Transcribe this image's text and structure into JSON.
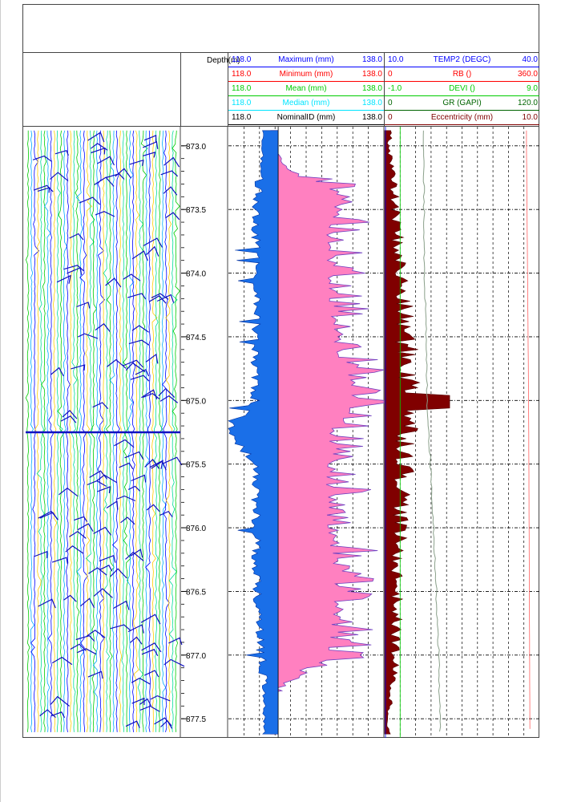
{
  "depth_label": "Depth(m)",
  "colors": {
    "blue": "#0000ff",
    "red": "#ff0000",
    "green": "#00cc00",
    "cyan": "#00e5ff",
    "black": "#000000",
    "darkred": "#800000",
    "dkgreen": "#006400",
    "pink": "#ff80c0",
    "fillblue": "#1a6fe8"
  },
  "track2_headers": [
    {
      "lo": "118.0",
      "name": "Maximum (mm)",
      "hi": "138.0",
      "color": "#0000ff"
    },
    {
      "lo": "118.0",
      "name": "Minimum (mm)",
      "hi": "138.0",
      "color": "#ff0000"
    },
    {
      "lo": "118.0",
      "name": "Mean (mm)",
      "hi": "138.0",
      "color": "#00cc00"
    },
    {
      "lo": "118.0",
      "name": "Median (mm)",
      "hi": "138.0",
      "color": "#00e5ff"
    },
    {
      "lo": "118.0",
      "name": "NominalID (mm)",
      "hi": "138.0",
      "color": "#000000"
    }
  ],
  "track3_headers": [
    {
      "lo": "10.0",
      "name": "TEMP2 (DEGC)",
      "hi": "40.0",
      "color": "#0000ff"
    },
    {
      "lo": "0",
      "name": "RB ()",
      "hi": "360.0",
      "color": "#ff0000"
    },
    {
      "lo": "-1.0",
      "name": "DEVI ()",
      "hi": "9.0",
      "color": "#00cc00"
    },
    {
      "lo": "0",
      "name": "GR (GAPI)",
      "hi": "120.0",
      "color": "#006400"
    },
    {
      "lo": "0",
      "name": "Eccentricity (mm)",
      "hi": "10.0",
      "color": "#800000"
    }
  ],
  "chart_data": {
    "type": "line",
    "ylabel": "Depth(m)",
    "depth_range": [
      872.85,
      877.65
    ],
    "depth_ticks": [
      "873.0",
      "873.5",
      "874.0",
      "874.5",
      "875.0",
      "875.5",
      "876.0",
      "876.5",
      "877.0",
      "877.5"
    ],
    "series": [
      {
        "name": "Maximum (mm)",
        "range": [
          118,
          138
        ],
        "samples": [
          {
            "depth": 873.0,
            "value": 123.3
          },
          {
            "depth": 873.2,
            "value": 126.0
          },
          {
            "depth": 873.4,
            "value": 133.0
          },
          {
            "depth": 873.6,
            "value": 131.0
          },
          {
            "depth": 874.0,
            "value": 131.5
          },
          {
            "depth": 874.5,
            "value": 132.0
          },
          {
            "depth": 875.0,
            "value": 134.5
          },
          {
            "depth": 875.2,
            "value": 132.0
          },
          {
            "depth": 875.5,
            "value": 131.0
          },
          {
            "depth": 876.0,
            "value": 131.5
          },
          {
            "depth": 876.5,
            "value": 132.5
          },
          {
            "depth": 877.0,
            "value": 131.0
          },
          {
            "depth": 877.3,
            "value": 123.3
          },
          {
            "depth": 877.6,
            "value": 123.3
          }
        ]
      },
      {
        "name": "Minimum (mm)",
        "range": [
          118,
          138
        ],
        "samples": [
          {
            "depth": 873.0,
            "value": 122.5
          },
          {
            "depth": 873.5,
            "value": 121.5
          },
          {
            "depth": 874.0,
            "value": 121.6
          },
          {
            "depth": 875.0,
            "value": 121.4
          },
          {
            "depth": 875.25,
            "value": 118.0
          },
          {
            "depth": 875.5,
            "value": 121.5
          },
          {
            "depth": 876.5,
            "value": 121.6
          },
          {
            "depth": 877.3,
            "value": 122.6
          },
          {
            "depth": 877.6,
            "value": 122.6
          }
        ]
      },
      {
        "name": "NominalID (mm)",
        "range": [
          118,
          138
        ],
        "samples": [
          {
            "depth": 872.85,
            "value": 124.4
          },
          {
            "depth": 877.65,
            "value": 124.4
          }
        ]
      },
      {
        "name": "Eccentricity (mm)",
        "range": [
          0,
          10
        ],
        "samples": [
          {
            "depth": 873.0,
            "value": 0.4
          },
          {
            "depth": 875.0,
            "value": 2.0
          },
          {
            "depth": 876.2,
            "value": 1.0
          },
          {
            "depth": 877.0,
            "value": 0.8
          },
          {
            "depth": 877.5,
            "value": 0.3
          }
        ]
      },
      {
        "name": "GR (GAPI)",
        "range": [
          0,
          120
        ],
        "samples": [
          {
            "depth": 873.0,
            "value": 30
          },
          {
            "depth": 874.0,
            "value": 31
          },
          {
            "depth": 875.0,
            "value": 33
          },
          {
            "depth": 876.0,
            "value": 38
          },
          {
            "depth": 877.0,
            "value": 42
          },
          {
            "depth": 877.6,
            "value": 43
          }
        ]
      },
      {
        "name": "RB ()",
        "range": [
          0,
          360
        ],
        "samples": [
          {
            "depth": 873.0,
            "value": 330
          },
          {
            "depth": 875.0,
            "value": 335
          },
          {
            "depth": 877.6,
            "value": 338
          }
        ]
      }
    ]
  }
}
